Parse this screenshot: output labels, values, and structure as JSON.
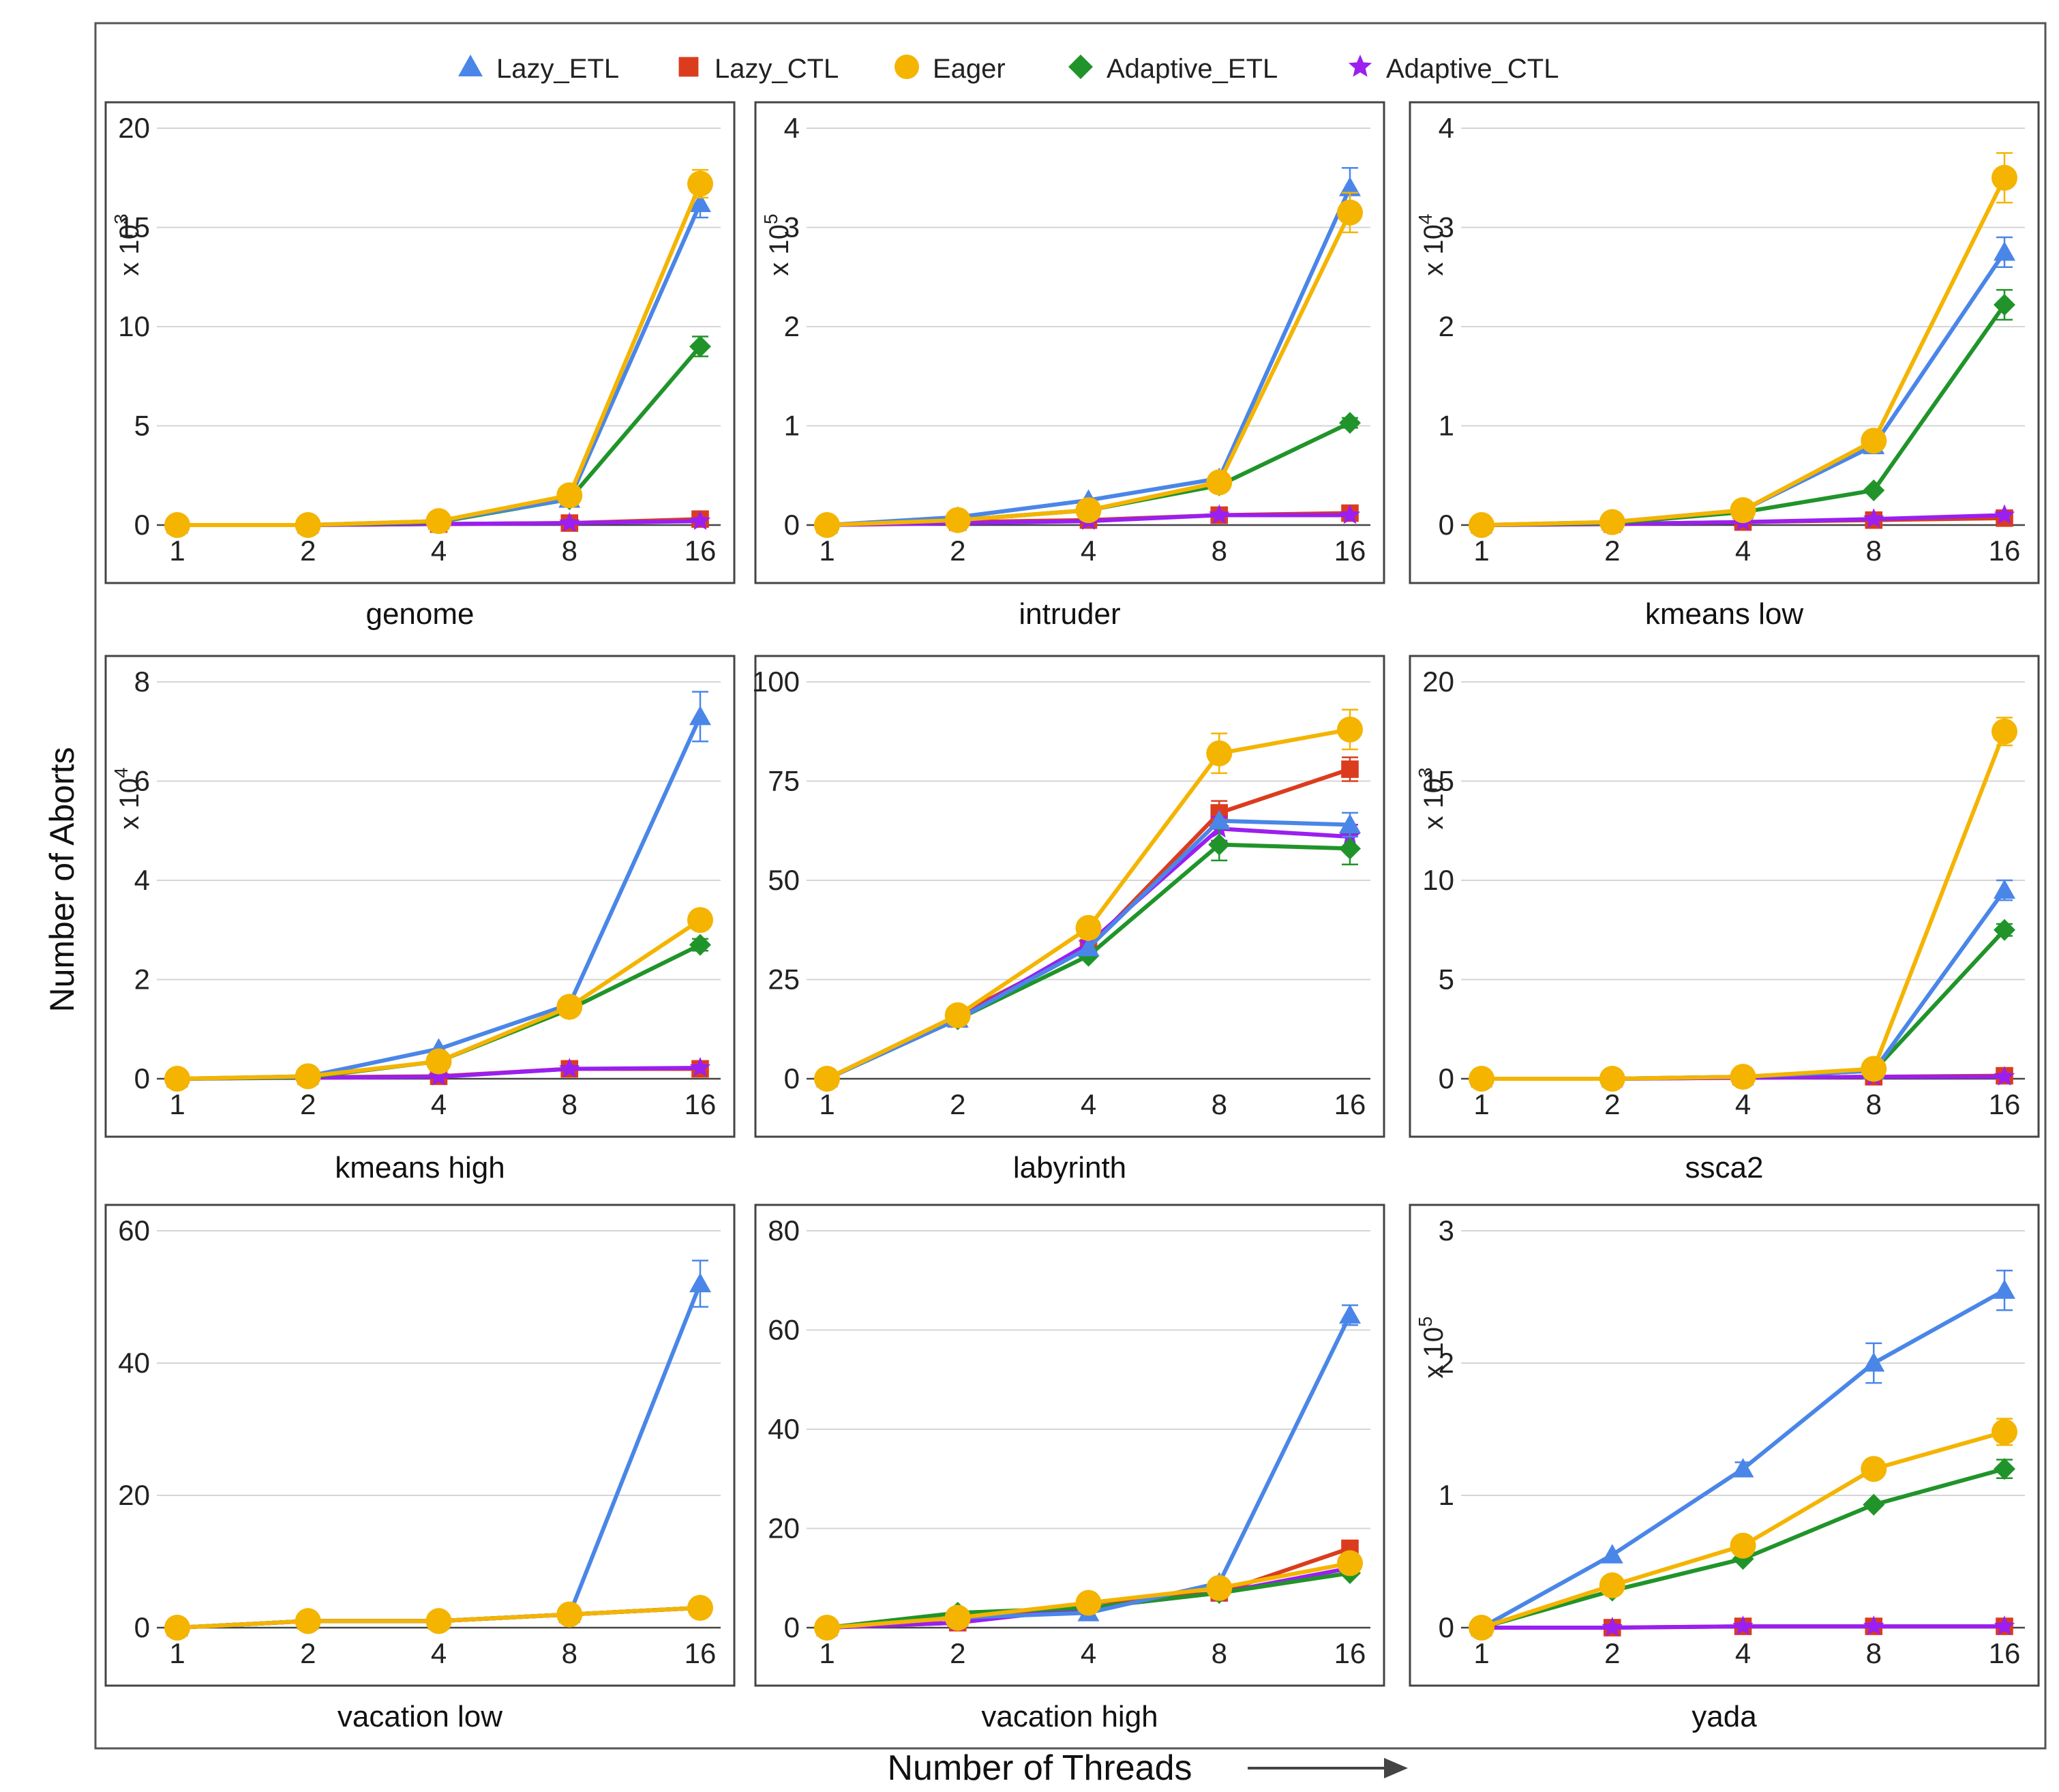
{
  "figure": {
    "y_axis_title": "Number of Aborts",
    "x_axis_title": "Number of Threads"
  },
  "legend": [
    {
      "name": "Lazy_ETL",
      "color": "#4a86e8",
      "marker": "triangle"
    },
    {
      "name": "Lazy_CTL",
      "color": "#db3c1e",
      "marker": "square"
    },
    {
      "name": "Eager",
      "color": "#f4b400",
      "marker": "circle"
    },
    {
      "name": "Adaptive_ETL",
      "color": "#20942a",
      "marker": "diamond"
    },
    {
      "name": "Adaptive_CTL",
      "color": "#9a1ff0",
      "marker": "star"
    }
  ],
  "chart_data": [
    {
      "type": "line",
      "title": "genome",
      "x": [
        "1",
        "2",
        "4",
        "8",
        "16"
      ],
      "yticks": [
        "0",
        "5",
        "10",
        "15",
        "20"
      ],
      "ylim": [
        0,
        20
      ],
      "multiplier": "x 10^3",
      "series": [
        {
          "name": "Lazy_ETL",
          "values": [
            0,
            0,
            0.2,
            1.3,
            16.2
          ],
          "err": [
            0,
            0,
            0,
            0,
            0.7
          ]
        },
        {
          "name": "Lazy_CTL",
          "values": [
            0,
            0,
            0.05,
            0.1,
            0.3
          ],
          "err": [
            0,
            0,
            0,
            0,
            0
          ]
        },
        {
          "name": "Eager",
          "values": [
            0,
            0,
            0.2,
            1.5,
            17.2
          ],
          "err": [
            0,
            0,
            0,
            0,
            0.7
          ]
        },
        {
          "name": "Adaptive_ETL",
          "values": [
            0,
            0,
            0.15,
            1.3,
            9.0
          ],
          "err": [
            0,
            0,
            0,
            0,
            0.5
          ]
        },
        {
          "name": "Adaptive_CTL",
          "values": [
            0,
            0,
            0.05,
            0.1,
            0.2
          ],
          "err": [
            0,
            0,
            0,
            0,
            0
          ]
        }
      ]
    },
    {
      "type": "line",
      "title": "intruder",
      "x": [
        "1",
        "2",
        "4",
        "8",
        "16"
      ],
      "yticks": [
        "0",
        "1",
        "2",
        "3",
        "4"
      ],
      "ylim": [
        0,
        4
      ],
      "multiplier": "x 10^5",
      "series": [
        {
          "name": "Lazy_ETL",
          "values": [
            0,
            0.08,
            0.25,
            0.47,
            3.4
          ],
          "err": [
            0,
            0,
            0,
            0,
            0.2
          ]
        },
        {
          "name": "Lazy_CTL",
          "values": [
            0,
            0.03,
            0.05,
            0.1,
            0.12
          ],
          "err": [
            0,
            0,
            0,
            0,
            0
          ]
        },
        {
          "name": "Eager",
          "values": [
            0,
            0.05,
            0.15,
            0.43,
            3.15
          ],
          "err": [
            0,
            0,
            0,
            0,
            0.2
          ]
        },
        {
          "name": "Adaptive_ETL",
          "values": [
            0,
            0.05,
            0.15,
            0.4,
            1.03
          ],
          "err": [
            0,
            0,
            0,
            0,
            0.05
          ]
        },
        {
          "name": "Adaptive_CTL",
          "values": [
            0,
            0.02,
            0.04,
            0.1,
            0.1
          ],
          "err": [
            0,
            0,
            0,
            0,
            0
          ]
        }
      ]
    },
    {
      "type": "line",
      "title": "kmeans low",
      "x": [
        "1",
        "2",
        "4",
        "8",
        "16"
      ],
      "yticks": [
        "0",
        "1",
        "2",
        "3",
        "4"
      ],
      "ylim": [
        0,
        4
      ],
      "multiplier": "x 10^4",
      "series": [
        {
          "name": "Lazy_ETL",
          "values": [
            0,
            0.03,
            0.15,
            0.8,
            2.75
          ],
          "err": [
            0,
            0,
            0,
            0,
            0.15
          ]
        },
        {
          "name": "Lazy_CTL",
          "values": [
            0,
            0.01,
            0.03,
            0.05,
            0.07
          ],
          "err": [
            0,
            0,
            0,
            0,
            0
          ]
        },
        {
          "name": "Eager",
          "values": [
            0,
            0.03,
            0.15,
            0.85,
            3.5
          ],
          "err": [
            0,
            0,
            0,
            0,
            0.25
          ]
        },
        {
          "name": "Adaptive_ETL",
          "values": [
            0,
            0.02,
            0.13,
            0.35,
            2.22
          ],
          "err": [
            0,
            0,
            0,
            0,
            0.15
          ]
        },
        {
          "name": "Adaptive_CTL",
          "values": [
            0,
            0.01,
            0.03,
            0.06,
            0.1
          ],
          "err": [
            0,
            0,
            0,
            0,
            0
          ]
        }
      ]
    },
    {
      "type": "line",
      "title": "kmeans high",
      "x": [
        "1",
        "2",
        "4",
        "8",
        "16"
      ],
      "yticks": [
        "0",
        "2",
        "4",
        "6",
        "8"
      ],
      "ylim": [
        0,
        8
      ],
      "multiplier": "x 10^4",
      "series": [
        {
          "name": "Lazy_ETL",
          "values": [
            0,
            0.05,
            0.6,
            1.5,
            7.3
          ],
          "err": [
            0,
            0,
            0,
            0,
            0.5
          ]
        },
        {
          "name": "Lazy_CTL",
          "values": [
            0,
            0.03,
            0.05,
            0.2,
            0.2
          ],
          "err": [
            0,
            0,
            0,
            0,
            0
          ]
        },
        {
          "name": "Eager",
          "values": [
            0,
            0.05,
            0.35,
            1.45,
            3.2
          ],
          "err": [
            0,
            0,
            0,
            0,
            0.15
          ]
        },
        {
          "name": "Adaptive_ETL",
          "values": [
            0,
            0.03,
            0.35,
            1.4,
            2.7
          ],
          "err": [
            0,
            0,
            0,
            0,
            0.12
          ]
        },
        {
          "name": "Adaptive_CTL",
          "values": [
            0,
            0.02,
            0.04,
            0.2,
            0.22
          ],
          "err": [
            0,
            0,
            0,
            0,
            0
          ]
        }
      ]
    },
    {
      "type": "line",
      "title": "labyrinth",
      "x": [
        "1",
        "2",
        "4",
        "8",
        "16"
      ],
      "yticks": [
        "0",
        "25",
        "50",
        "75",
        "100"
      ],
      "ylim": [
        0,
        100
      ],
      "multiplier": "",
      "series": [
        {
          "name": "Lazy_ETL",
          "values": [
            0,
            15,
            33,
            65,
            64
          ],
          "err": [
            0,
            0,
            0,
            0,
            3
          ]
        },
        {
          "name": "Lazy_CTL",
          "values": [
            0,
            16,
            33,
            67,
            78
          ],
          "err": [
            0,
            0,
            0,
            3,
            3
          ]
        },
        {
          "name": "Eager",
          "values": [
            0,
            16,
            38,
            82,
            88
          ],
          "err": [
            0,
            0,
            0,
            5,
            5
          ]
        },
        {
          "name": "Adaptive_ETL",
          "values": [
            0,
            15,
            31,
            59,
            58
          ],
          "err": [
            0,
            0,
            0,
            4,
            4
          ]
        },
        {
          "name": "Adaptive_CTL",
          "values": [
            0,
            15,
            34,
            63,
            61
          ],
          "err": [
            0,
            0,
            0,
            3,
            3
          ]
        }
      ]
    },
    {
      "type": "line",
      "title": "ssca2",
      "x": [
        "1",
        "2",
        "4",
        "8",
        "16"
      ],
      "yticks": [
        "0",
        "5",
        "10",
        "15",
        "20"
      ],
      "ylim": [
        0,
        20
      ],
      "multiplier": "x 10^3",
      "series": [
        {
          "name": "Lazy_ETL",
          "values": [
            0,
            0,
            0.1,
            0.4,
            9.5
          ],
          "err": [
            0,
            0,
            0,
            0,
            0.5
          ]
        },
        {
          "name": "Lazy_CTL",
          "values": [
            0,
            0,
            0.05,
            0.1,
            0.15
          ],
          "err": [
            0,
            0,
            0,
            0,
            0
          ]
        },
        {
          "name": "Eager",
          "values": [
            0,
            0,
            0.1,
            0.5,
            17.5
          ],
          "err": [
            0,
            0,
            0,
            0,
            0.7
          ]
        },
        {
          "name": "Adaptive_ETL",
          "values": [
            0,
            0,
            0.1,
            0.4,
            7.5
          ],
          "err": [
            0,
            0,
            0,
            0,
            0.3
          ]
        },
        {
          "name": "Adaptive_CTL",
          "values": [
            0,
            0,
            0.05,
            0.1,
            0.1
          ],
          "err": [
            0,
            0,
            0,
            0,
            0
          ]
        }
      ]
    },
    {
      "type": "line",
      "title": "vacation low",
      "x": [
        "1",
        "2",
        "4",
        "8",
        "16"
      ],
      "yticks": [
        "0",
        "20",
        "40",
        "60"
      ],
      "ylim": [
        0,
        60
      ],
      "multiplier": "",
      "series": [
        {
          "name": "Lazy_ETL",
          "values": [
            0,
            1,
            1,
            2,
            52
          ],
          "err": [
            0,
            0,
            0,
            0,
            3.5
          ]
        },
        {
          "name": "Lazy_CTL",
          "values": [
            0,
            1,
            1,
            2,
            3
          ],
          "err": [
            0,
            0,
            0,
            0,
            0
          ]
        },
        {
          "name": "Eager",
          "values": [
            0,
            1,
            1,
            2,
            3
          ],
          "err": [
            0,
            0,
            0,
            0,
            0
          ]
        },
        {
          "name": "Adaptive_ETL",
          "values": [
            0,
            1,
            1,
            2,
            3
          ],
          "err": [
            0,
            0,
            0,
            0,
            0
          ]
        },
        {
          "name": "Adaptive_CTL",
          "values": [
            0,
            1,
            1,
            2,
            3
          ],
          "err": [
            0,
            0,
            0,
            0,
            0
          ]
        }
      ]
    },
    {
      "type": "line",
      "title": "vacation high",
      "x": [
        "1",
        "2",
        "4",
        "8",
        "16"
      ],
      "yticks": [
        "0",
        "20",
        "40",
        "60",
        "80"
      ],
      "ylim": [
        0,
        80
      ],
      "multiplier": "",
      "series": [
        {
          "name": "Lazy_ETL",
          "values": [
            0,
            2,
            3,
            9,
            63
          ],
          "err": [
            0,
            0,
            0,
            0,
            2
          ]
        },
        {
          "name": "Lazy_CTL",
          "values": [
            0,
            1,
            5,
            7,
            16
          ],
          "err": [
            0,
            0,
            0,
            0,
            0
          ]
        },
        {
          "name": "Eager",
          "values": [
            0,
            2,
            5,
            8,
            13
          ],
          "err": [
            0,
            0,
            0,
            0,
            0
          ]
        },
        {
          "name": "Adaptive_ETL",
          "values": [
            0,
            3,
            4,
            7,
            11
          ],
          "err": [
            0,
            0,
            0,
            0,
            0
          ]
        },
        {
          "name": "Adaptive_CTL",
          "values": [
            0,
            1,
            4,
            7,
            12
          ],
          "err": [
            0,
            0,
            0,
            0,
            0
          ]
        }
      ]
    },
    {
      "type": "line",
      "title": "yada",
      "x": [
        "1",
        "2",
        "4",
        "8",
        "16"
      ],
      "yticks": [
        "0",
        "1",
        "2",
        "3"
      ],
      "ylim": [
        0,
        3
      ],
      "multiplier": "x 10^5",
      "series": [
        {
          "name": "Lazy_ETL",
          "values": [
            0,
            0.55,
            1.2,
            2.0,
            2.55
          ],
          "err": [
            0,
            0,
            0.05,
            0.15,
            0.15
          ]
        },
        {
          "name": "Lazy_CTL",
          "values": [
            0,
            0,
            0.01,
            0.01,
            0.01
          ],
          "err": [
            0,
            0,
            0,
            0,
            0
          ]
        },
        {
          "name": "Eager",
          "values": [
            0,
            0.32,
            0.62,
            1.2,
            1.48
          ],
          "err": [
            0,
            0,
            0,
            0.07,
            0.1
          ]
        },
        {
          "name": "Adaptive_ETL",
          "values": [
            0,
            0.28,
            0.52,
            0.93,
            1.2
          ],
          "err": [
            0,
            0,
            0,
            0,
            0.07
          ]
        },
        {
          "name": "Adaptive_CTL",
          "values": [
            0,
            0,
            0.01,
            0.01,
            0.01
          ],
          "err": [
            0,
            0,
            0,
            0,
            0
          ]
        }
      ]
    }
  ]
}
